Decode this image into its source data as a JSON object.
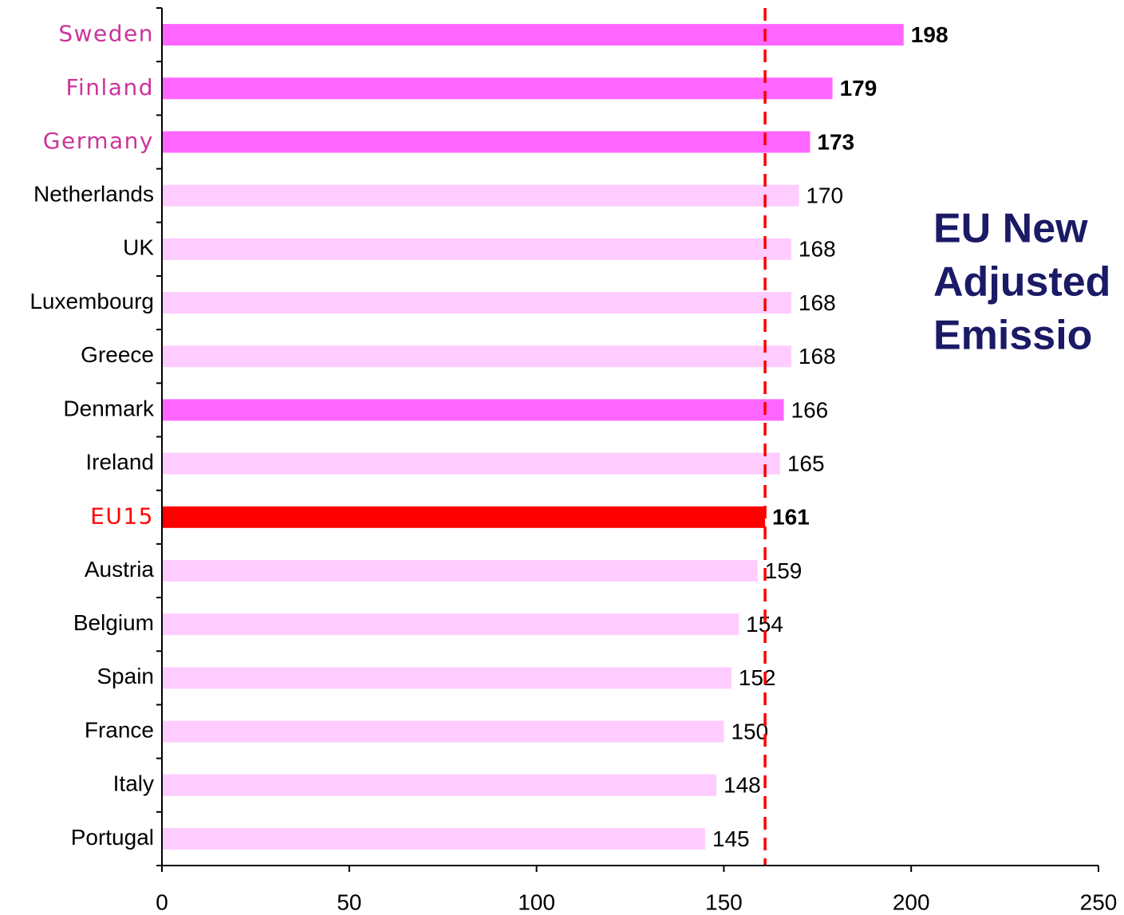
{
  "chart_data": {
    "type": "bar",
    "orientation": "horizontal",
    "categories": [
      "Sweden",
      "Finland",
      "Germany",
      "Netherlands",
      "UK",
      "Luxembourg",
      "Greece",
      "Denmark",
      "Ireland",
      "EU15",
      "Austria",
      "Belgium",
      "Spain",
      "France",
      "Italy",
      "Portugal"
    ],
    "values": [
      198,
      179,
      173,
      170,
      168,
      168,
      168,
      166,
      165,
      161,
      159,
      154,
      152,
      150,
      148,
      145
    ],
    "colors": [
      "#ff66ff",
      "#ff66ff",
      "#ff66ff",
      "#ffccff",
      "#ffccff",
      "#ffccff",
      "#ffccff",
      "#ff66ff",
      "#ffccff",
      "#ff0000",
      "#ffccff",
      "#ffccff",
      "#ffccff",
      "#ffccff",
      "#ffccff",
      "#ffccff"
    ],
    "label_colors": [
      "#cc3399",
      "#cc3399",
      "#cc3399",
      "#000000",
      "#000000",
      "#000000",
      "#000000",
      "#000000",
      "#000000",
      "#ff0000",
      "#000000",
      "#000000",
      "#000000",
      "#000000",
      "#000000",
      "#000000"
    ],
    "bold_values": [
      true,
      true,
      true,
      false,
      false,
      false,
      false,
      false,
      false,
      true,
      false,
      false,
      false,
      false,
      false,
      false
    ],
    "xlim": [
      0,
      250
    ],
    "xticks": [
      0,
      50,
      100,
      150,
      200,
      250
    ],
    "reference_line": {
      "value": 161,
      "color": "#ff0000",
      "dashed": true
    },
    "annotation": [
      "EU New",
      "Adjusted",
      "Emissio"
    ],
    "annotation_color": "#1a1a66"
  }
}
